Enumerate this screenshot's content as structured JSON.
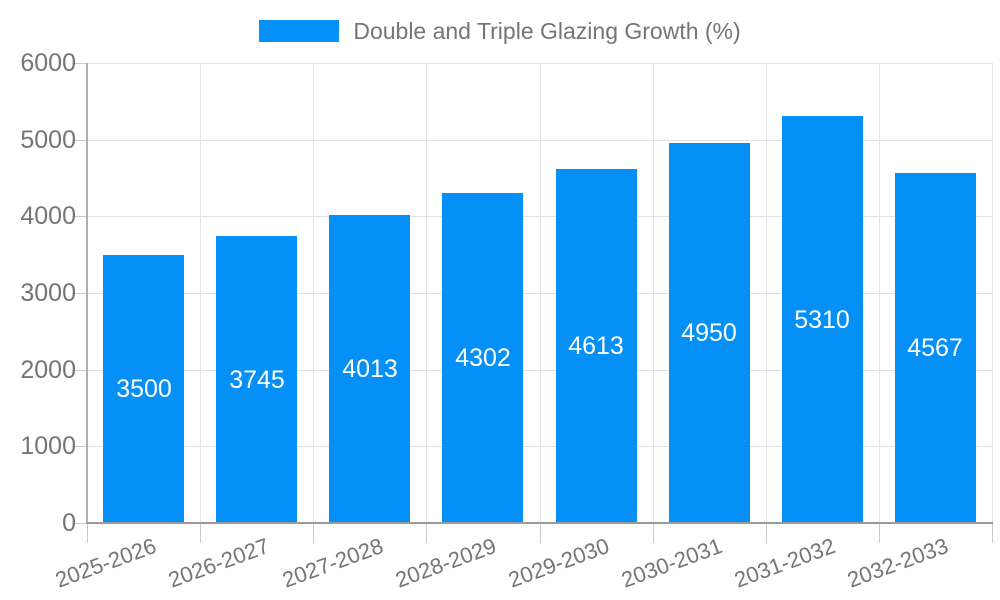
{
  "chart_data": {
    "type": "bar",
    "title": "",
    "legend": "Double and Triple Glazing Growth (%)",
    "legend_position": "top",
    "categories": [
      "2025-2026",
      "2026-2027",
      "2027-2028",
      "2028-2029",
      "2029-2030",
      "2030-2031",
      "2031-2032",
      "2032-2033"
    ],
    "values": [
      3500,
      3745,
      4013,
      4302,
      4613,
      4950,
      5310,
      4567
    ],
    "value_labels": [
      "3500",
      "3745",
      "4013",
      "4302",
      "4613",
      "4950",
      "5310",
      "4567"
    ],
    "xlabel": "",
    "ylabel": "",
    "ylim": [
      0,
      6000
    ],
    "y_ticks": [
      0,
      1000,
      2000,
      3000,
      4000,
      5000,
      6000
    ],
    "grid": true,
    "colors": {
      "bar": "#0590f8",
      "axis_text": "#757575",
      "value_label": "#ffffff"
    }
  }
}
